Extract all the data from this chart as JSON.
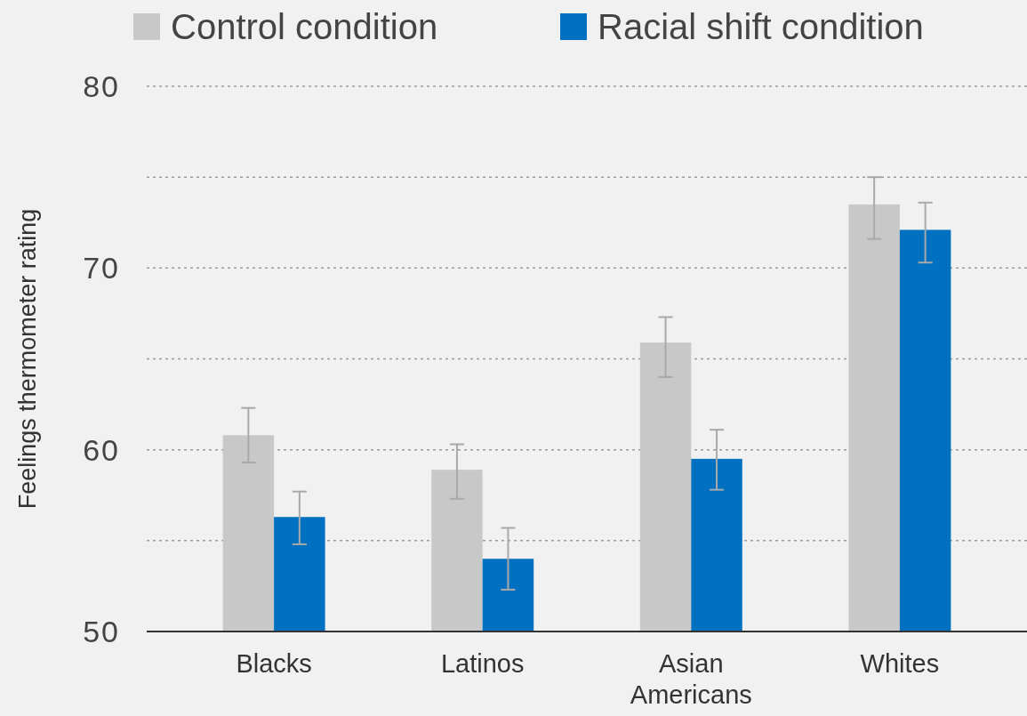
{
  "chart_data": {
    "type": "bar",
    "ylabel": "Feelings thermometer rating",
    "categories": [
      "Blacks",
      "Latinos",
      "Asian Americans",
      "Whites"
    ],
    "series": [
      {
        "name": "Control condition",
        "color": "#c8c8c8",
        "values": [
          60.8,
          58.9,
          65.9,
          73.5
        ],
        "errors": [
          [
            59.3,
            62.3
          ],
          [
            57.3,
            60.3
          ],
          [
            64.0,
            67.3
          ],
          [
            71.6,
            75.0
          ]
        ]
      },
      {
        "name": "Racial shift condition",
        "color": "#0070c0",
        "values": [
          56.3,
          54.0,
          59.5,
          72.1
        ],
        "errors": [
          [
            54.8,
            57.7
          ],
          [
            52.3,
            55.7
          ],
          [
            57.8,
            61.1
          ],
          [
            70.3,
            73.6
          ]
        ]
      }
    ],
    "ylim": [
      50,
      80
    ],
    "yticks": [
      50,
      {
        "value": 55,
        "label": null
      },
      60,
      {
        "value": 65,
        "label": null
      },
      70,
      {
        "value": 75,
        "label": null
      },
      80
    ],
    "grid": "y",
    "legend": "top left"
  }
}
